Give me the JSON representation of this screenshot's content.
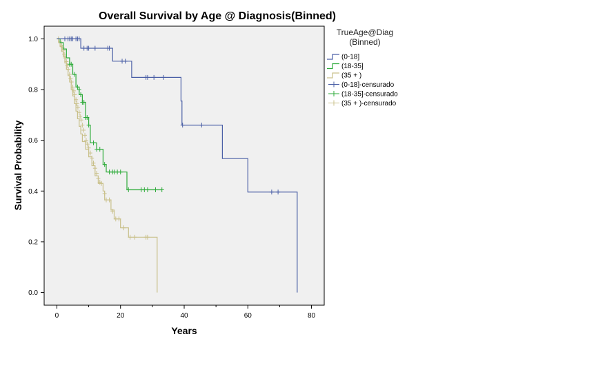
{
  "chart_data": {
    "type": "line",
    "subtype": "kaplan-meier step",
    "title": "Overall Survival by Age @ Diagnosis(Binned)",
    "xlabel": "Years",
    "ylabel": "Survival Probability",
    "xlim": [
      -4,
      84
    ],
    "ylim": [
      -0.05,
      1.05
    ],
    "xticks": [
      0,
      20,
      40,
      60,
      80
    ],
    "yticks": [
      0.0,
      0.2,
      0.4,
      0.6,
      0.8,
      1.0
    ],
    "xtick_labels": [
      "0",
      "20",
      "40",
      "60",
      "80"
    ],
    "ytick_labels": [
      "0.0",
      "0.2",
      "0.4",
      "0.6",
      "0.8",
      "1.0"
    ],
    "grid": false,
    "plot_background": "#f0f0f0",
    "legend": {
      "position": "right",
      "title_line1": "TrueAge@Diag",
      "title_line2": "(Binned)",
      "entries": [
        "(0-18]",
        "(18-35]",
        "(35 + )",
        "(0-18]-censurado",
        "(18-35]-censurado",
        "(35 + )-censurado"
      ]
    },
    "series": [
      {
        "name": "(0-18]",
        "color": "#4a5fa6",
        "steps": [
          [
            0,
            1.0
          ],
          [
            7.5,
            1.0
          ],
          [
            7.5,
            0.963
          ],
          [
            17.5,
            0.963
          ],
          [
            17.5,
            0.912
          ],
          [
            23.5,
            0.912
          ],
          [
            23.5,
            0.848
          ],
          [
            39,
            0.848
          ],
          [
            39,
            0.755
          ],
          [
            39.3,
            0.755
          ],
          [
            39.3,
            0.66
          ],
          [
            52,
            0.66
          ],
          [
            52,
            0.528
          ],
          [
            60,
            0.528
          ],
          [
            60,
            0.396
          ],
          [
            75.5,
            0.396
          ],
          [
            75.5,
            0.0
          ]
        ],
        "censored": [
          [
            2.5,
            1.0
          ],
          [
            3.5,
            1.0
          ],
          [
            4,
            1.0
          ],
          [
            4.5,
            1.0
          ],
          [
            5,
            1.0
          ],
          [
            6,
            1.0
          ],
          [
            6.5,
            1.0
          ],
          [
            7,
            1.0
          ],
          [
            8.5,
            0.963
          ],
          [
            9.5,
            0.963
          ],
          [
            10,
            0.963
          ],
          [
            12,
            0.963
          ],
          [
            16,
            0.963
          ],
          [
            16.5,
            0.963
          ],
          [
            20.5,
            0.912
          ],
          [
            21.5,
            0.912
          ],
          [
            28,
            0.848
          ],
          [
            28.5,
            0.848
          ],
          [
            30.5,
            0.848
          ],
          [
            33.5,
            0.848
          ],
          [
            39.5,
            0.66
          ],
          [
            45.5,
            0.66
          ],
          [
            67.5,
            0.396
          ],
          [
            69.5,
            0.396
          ]
        ]
      },
      {
        "name": "(18-35]",
        "color": "#2eab3a",
        "steps": [
          [
            0,
            1.0
          ],
          [
            1,
            1.0
          ],
          [
            1,
            0.985
          ],
          [
            2,
            0.985
          ],
          [
            2,
            0.96
          ],
          [
            3,
            0.96
          ],
          [
            3,
            0.925
          ],
          [
            4,
            0.925
          ],
          [
            4,
            0.9
          ],
          [
            5,
            0.9
          ],
          [
            5,
            0.86
          ],
          [
            6,
            0.86
          ],
          [
            6,
            0.81
          ],
          [
            7,
            0.81
          ],
          [
            7,
            0.78
          ],
          [
            8,
            0.78
          ],
          [
            8,
            0.75
          ],
          [
            9,
            0.75
          ],
          [
            9,
            0.69
          ],
          [
            10,
            0.69
          ],
          [
            10,
            0.66
          ],
          [
            10.5,
            0.66
          ],
          [
            10.5,
            0.59
          ],
          [
            12.5,
            0.59
          ],
          [
            12.5,
            0.565
          ],
          [
            14.5,
            0.565
          ],
          [
            14.5,
            0.505
          ],
          [
            15.5,
            0.505
          ],
          [
            15.5,
            0.475
          ],
          [
            22,
            0.475
          ],
          [
            22,
            0.405
          ],
          [
            33,
            0.405
          ]
        ],
        "censored": [
          [
            4,
            0.9
          ],
          [
            4.5,
            0.9
          ],
          [
            5.5,
            0.86
          ],
          [
            6.5,
            0.81
          ],
          [
            7,
            0.8
          ],
          [
            7.5,
            0.78
          ],
          [
            8,
            0.75
          ],
          [
            8.5,
            0.75
          ],
          [
            9,
            0.69
          ],
          [
            9.5,
            0.69
          ],
          [
            10,
            0.66
          ],
          [
            11.5,
            0.59
          ],
          [
            12.5,
            0.565
          ],
          [
            13.5,
            0.565
          ],
          [
            15,
            0.505
          ],
          [
            16.5,
            0.475
          ],
          [
            17.5,
            0.475
          ],
          [
            18,
            0.475
          ],
          [
            19,
            0.475
          ],
          [
            20,
            0.475
          ],
          [
            22.5,
            0.405
          ],
          [
            26.5,
            0.405
          ],
          [
            27.5,
            0.405
          ],
          [
            28.5,
            0.405
          ],
          [
            31,
            0.405
          ],
          [
            33,
            0.405
          ]
        ]
      },
      {
        "name": "(35 + )",
        "color": "#c9c08a",
        "steps": [
          [
            0,
            1.0
          ],
          [
            0.5,
            1.0
          ],
          [
            0.5,
            0.985
          ],
          [
            1,
            0.985
          ],
          [
            1,
            0.97
          ],
          [
            1.5,
            0.97
          ],
          [
            1.5,
            0.95
          ],
          [
            2,
            0.95
          ],
          [
            2,
            0.93
          ],
          [
            2.5,
            0.93
          ],
          [
            2.5,
            0.905
          ],
          [
            3,
            0.905
          ],
          [
            3,
            0.88
          ],
          [
            3.5,
            0.88
          ],
          [
            3.5,
            0.855
          ],
          [
            4,
            0.855
          ],
          [
            4,
            0.83
          ],
          [
            4.5,
            0.83
          ],
          [
            4.5,
            0.8
          ],
          [
            5,
            0.8
          ],
          [
            5,
            0.775
          ],
          [
            5.5,
            0.775
          ],
          [
            5.5,
            0.745
          ],
          [
            6,
            0.745
          ],
          [
            6,
            0.715
          ],
          [
            6.5,
            0.715
          ],
          [
            6.5,
            0.685
          ],
          [
            7,
            0.685
          ],
          [
            7,
            0.655
          ],
          [
            7.5,
            0.655
          ],
          [
            7.5,
            0.625
          ],
          [
            8,
            0.625
          ],
          [
            8,
            0.595
          ],
          [
            9,
            0.595
          ],
          [
            9,
            0.565
          ],
          [
            10,
            0.565
          ],
          [
            10,
            0.535
          ],
          [
            11,
            0.535
          ],
          [
            11,
            0.5
          ],
          [
            12,
            0.5
          ],
          [
            12,
            0.46
          ],
          [
            13,
            0.46
          ],
          [
            13,
            0.43
          ],
          [
            14.5,
            0.43
          ],
          [
            14.5,
            0.4
          ],
          [
            15,
            0.4
          ],
          [
            15,
            0.365
          ],
          [
            17,
            0.365
          ],
          [
            17,
            0.325
          ],
          [
            18,
            0.325
          ],
          [
            18,
            0.29
          ],
          [
            20,
            0.29
          ],
          [
            20,
            0.255
          ],
          [
            22.5,
            0.255
          ],
          [
            22.5,
            0.218
          ],
          [
            31.5,
            0.218
          ],
          [
            31.5,
            0.0
          ]
        ],
        "censored": [
          [
            0.5,
            1.0
          ],
          [
            1,
            0.99
          ],
          [
            1.5,
            0.975
          ],
          [
            1.8,
            0.965
          ],
          [
            2,
            0.955
          ],
          [
            2.3,
            0.94
          ],
          [
            2.6,
            0.925
          ],
          [
            3,
            0.91
          ],
          [
            3.3,
            0.895
          ],
          [
            3.6,
            0.88
          ],
          [
            4,
            0.86
          ],
          [
            4.3,
            0.845
          ],
          [
            4.6,
            0.83
          ],
          [
            5,
            0.81
          ],
          [
            5.3,
            0.795
          ],
          [
            5.6,
            0.78
          ],
          [
            6,
            0.76
          ],
          [
            6.3,
            0.745
          ],
          [
            6.6,
            0.73
          ],
          [
            7,
            0.71
          ],
          [
            7.3,
            0.695
          ],
          [
            7.6,
            0.68
          ],
          [
            8,
            0.66
          ],
          [
            8.4,
            0.64
          ],
          [
            8.8,
            0.62
          ],
          [
            9.2,
            0.6
          ],
          [
            9.6,
            0.585
          ],
          [
            10,
            0.57
          ],
          [
            10.5,
            0.55
          ],
          [
            11,
            0.53
          ],
          [
            11.5,
            0.51
          ],
          [
            12,
            0.49
          ],
          [
            12.5,
            0.47
          ],
          [
            13,
            0.45
          ],
          [
            13.5,
            0.435
          ],
          [
            14,
            0.43
          ],
          [
            15,
            0.39
          ],
          [
            15.5,
            0.365
          ],
          [
            16.5,
            0.365
          ],
          [
            17.5,
            0.32
          ],
          [
            18.5,
            0.29
          ],
          [
            19.5,
            0.29
          ],
          [
            21,
            0.255
          ],
          [
            23,
            0.218
          ],
          [
            24.5,
            0.218
          ],
          [
            28,
            0.218
          ],
          [
            28.5,
            0.218
          ]
        ]
      }
    ]
  }
}
